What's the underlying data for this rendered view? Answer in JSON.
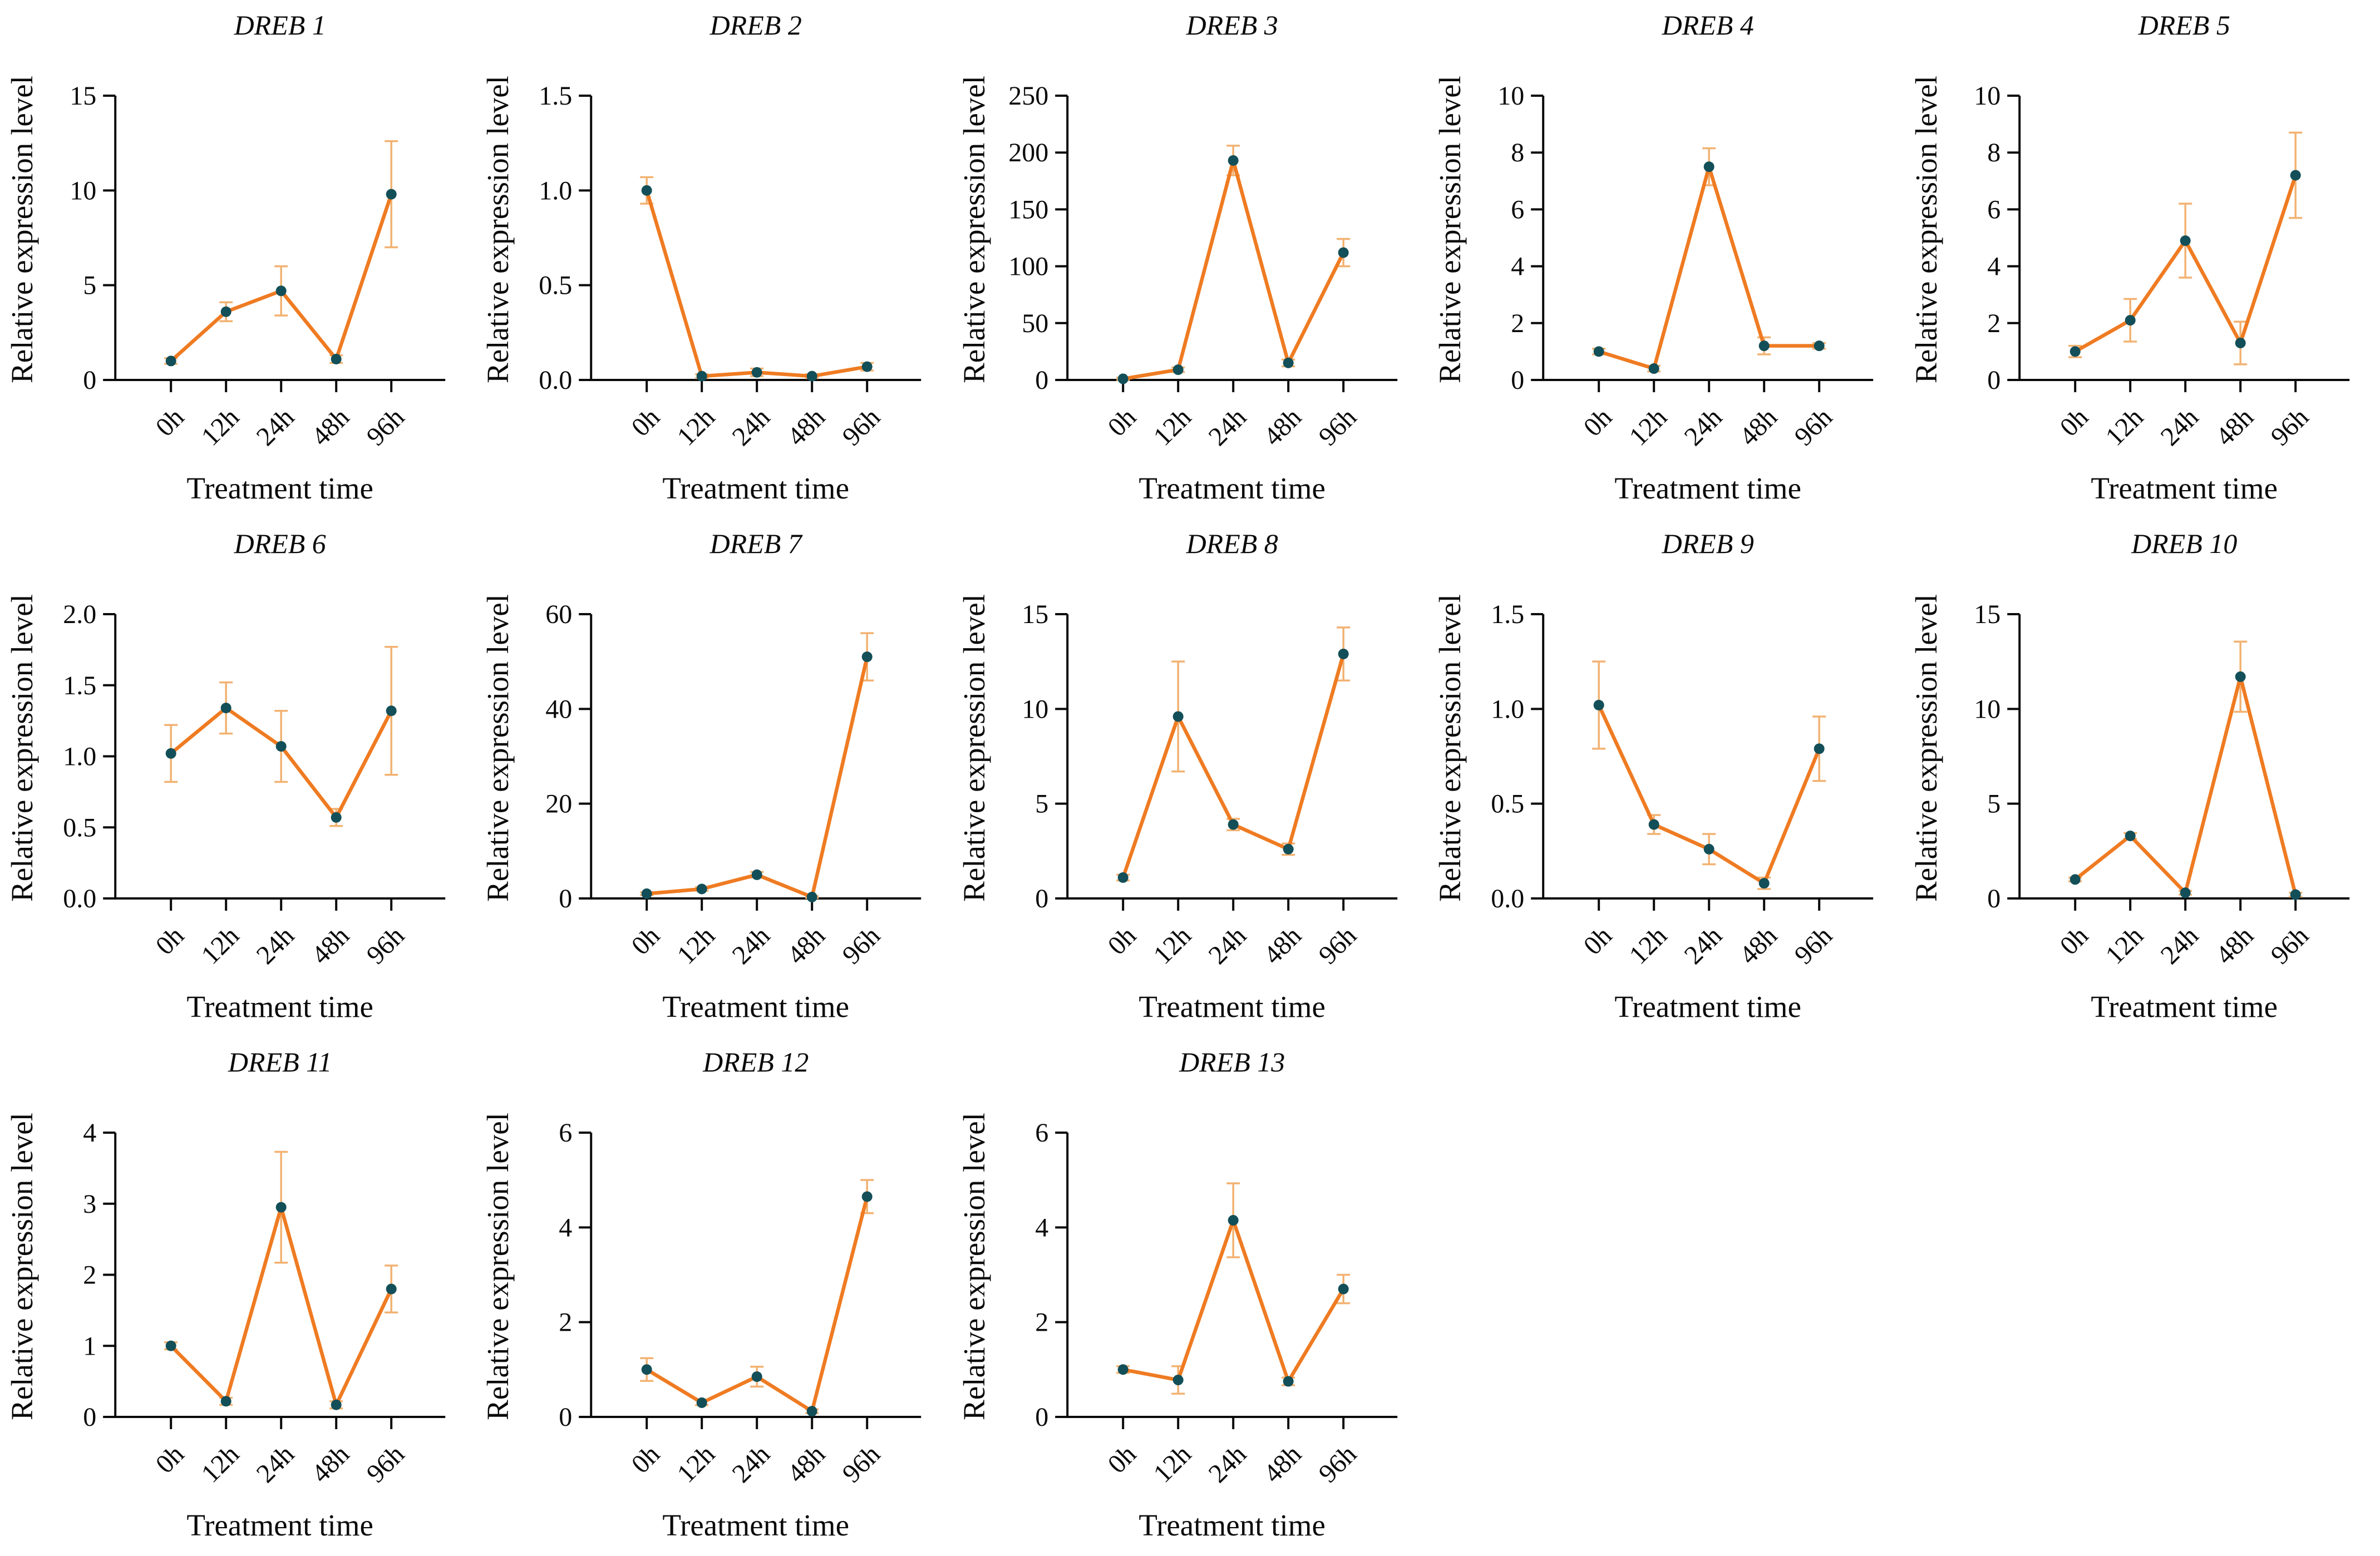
{
  "figure": {
    "ylabel": "Relative expression level",
    "xlabel": "Treatment time",
    "categories": [
      "0h",
      "12h",
      "24h",
      "48h",
      "96h"
    ]
  },
  "colors": {
    "line": "#EF7B22",
    "marker": "#134F58",
    "error_bar": "#F2B272",
    "axis": "#0a0a0a"
  },
  "chart_data": [
    {
      "type": "line",
      "title": "DREB 1",
      "values": [
        1.0,
        3.6,
        4.7,
        1.1,
        9.8
      ],
      "errors": [
        0.15,
        0.5,
        1.3,
        0.2,
        2.8
      ],
      "ylim": [
        0,
        15
      ],
      "yticks": [
        "0",
        "5",
        "10",
        "15"
      ]
    },
    {
      "type": "line",
      "title": "DREB 2",
      "values": [
        1.0,
        0.02,
        0.04,
        0.02,
        0.07
      ],
      "errors": [
        0.07,
        0.01,
        0.02,
        0.01,
        0.02
      ],
      "ylim": [
        0,
        1.5
      ],
      "yticks": [
        "0.0",
        "0.5",
        "1.0",
        "1.5"
      ]
    },
    {
      "type": "line",
      "title": "DREB 3",
      "values": [
        1,
        9,
        193,
        15,
        112
      ],
      "errors": [
        1,
        2,
        13,
        3,
        12
      ],
      "ylim": [
        0,
        250
      ],
      "yticks": [
        "0",
        "50",
        "100",
        "150",
        "200",
        "250"
      ]
    },
    {
      "type": "line",
      "title": "DREB 4",
      "values": [
        1.0,
        0.4,
        7.5,
        1.2,
        1.2
      ],
      "errors": [
        0.1,
        0.1,
        0.65,
        0.3,
        0.1
      ],
      "ylim": [
        0,
        10
      ],
      "yticks": [
        "0",
        "2",
        "4",
        "6",
        "8",
        "10"
      ]
    },
    {
      "type": "line",
      "title": "DREB 5",
      "values": [
        1.0,
        2.1,
        4.9,
        1.3,
        7.2
      ],
      "errors": [
        0.2,
        0.75,
        1.3,
        0.75,
        1.5
      ],
      "ylim": [
        0,
        10
      ],
      "yticks": [
        "0",
        "2",
        "4",
        "6",
        "8",
        "10"
      ]
    },
    {
      "type": "line",
      "title": "DREB 6",
      "values": [
        1.02,
        1.34,
        1.07,
        0.57,
        1.32
      ],
      "errors": [
        0.2,
        0.18,
        0.25,
        0.06,
        0.45
      ],
      "ylim": [
        0,
        2.0
      ],
      "yticks": [
        "0.0",
        "0.5",
        "1.0",
        "1.5",
        "2.0"
      ]
    },
    {
      "type": "line",
      "title": "DREB 7",
      "values": [
        1,
        2,
        5,
        0.3,
        51
      ],
      "errors": [
        0.3,
        0.4,
        0.6,
        0.2,
        5
      ],
      "ylim": [
        0,
        60
      ],
      "yticks": [
        "0",
        "20",
        "40",
        "60"
      ]
    },
    {
      "type": "line",
      "title": "DREB 8",
      "values": [
        1.1,
        9.6,
        3.9,
        2.6,
        12.9
      ],
      "errors": [
        0.15,
        2.9,
        0.3,
        0.3,
        1.4
      ],
      "ylim": [
        0,
        15
      ],
      "yticks": [
        "0",
        "5",
        "10",
        "15"
      ]
    },
    {
      "type": "line",
      "title": "DREB 9",
      "values": [
        1.02,
        0.39,
        0.26,
        0.08,
        0.79
      ],
      "errors": [
        0.23,
        0.05,
        0.08,
        0.03,
        0.17
      ],
      "ylim": [
        0,
        1.5
      ],
      "yticks": [
        "0.0",
        "0.5",
        "1.0",
        "1.5"
      ]
    },
    {
      "type": "line",
      "title": "DREB 10",
      "values": [
        1.0,
        3.3,
        0.3,
        11.7,
        0.2
      ],
      "errors": [
        0.1,
        0.15,
        0.1,
        1.85,
        0.1
      ],
      "ylim": [
        0,
        15
      ],
      "yticks": [
        "0",
        "5",
        "10",
        "15"
      ]
    },
    {
      "type": "line",
      "title": "DREB 11",
      "values": [
        1.0,
        0.22,
        2.95,
        0.17,
        1.8
      ],
      "errors": [
        0.05,
        0.05,
        0.78,
        0.05,
        0.33
      ],
      "ylim": [
        0,
        4
      ],
      "yticks": [
        "0",
        "1",
        "2",
        "3",
        "4"
      ]
    },
    {
      "type": "line",
      "title": "DREB 12",
      "values": [
        1.0,
        0.3,
        0.85,
        0.12,
        4.65
      ],
      "errors": [
        0.24,
        0.05,
        0.21,
        0.04,
        0.35
      ],
      "ylim": [
        0,
        6
      ],
      "yticks": [
        "0",
        "2",
        "4",
        "6"
      ]
    },
    {
      "type": "line",
      "title": "DREB 13",
      "values": [
        1.0,
        0.78,
        4.15,
        0.75,
        2.7
      ],
      "errors": [
        0.07,
        0.29,
        0.78,
        0.08,
        0.3
      ],
      "ylim": [
        0,
        6
      ],
      "yticks": [
        "0",
        "2",
        "4",
        "6"
      ]
    }
  ]
}
